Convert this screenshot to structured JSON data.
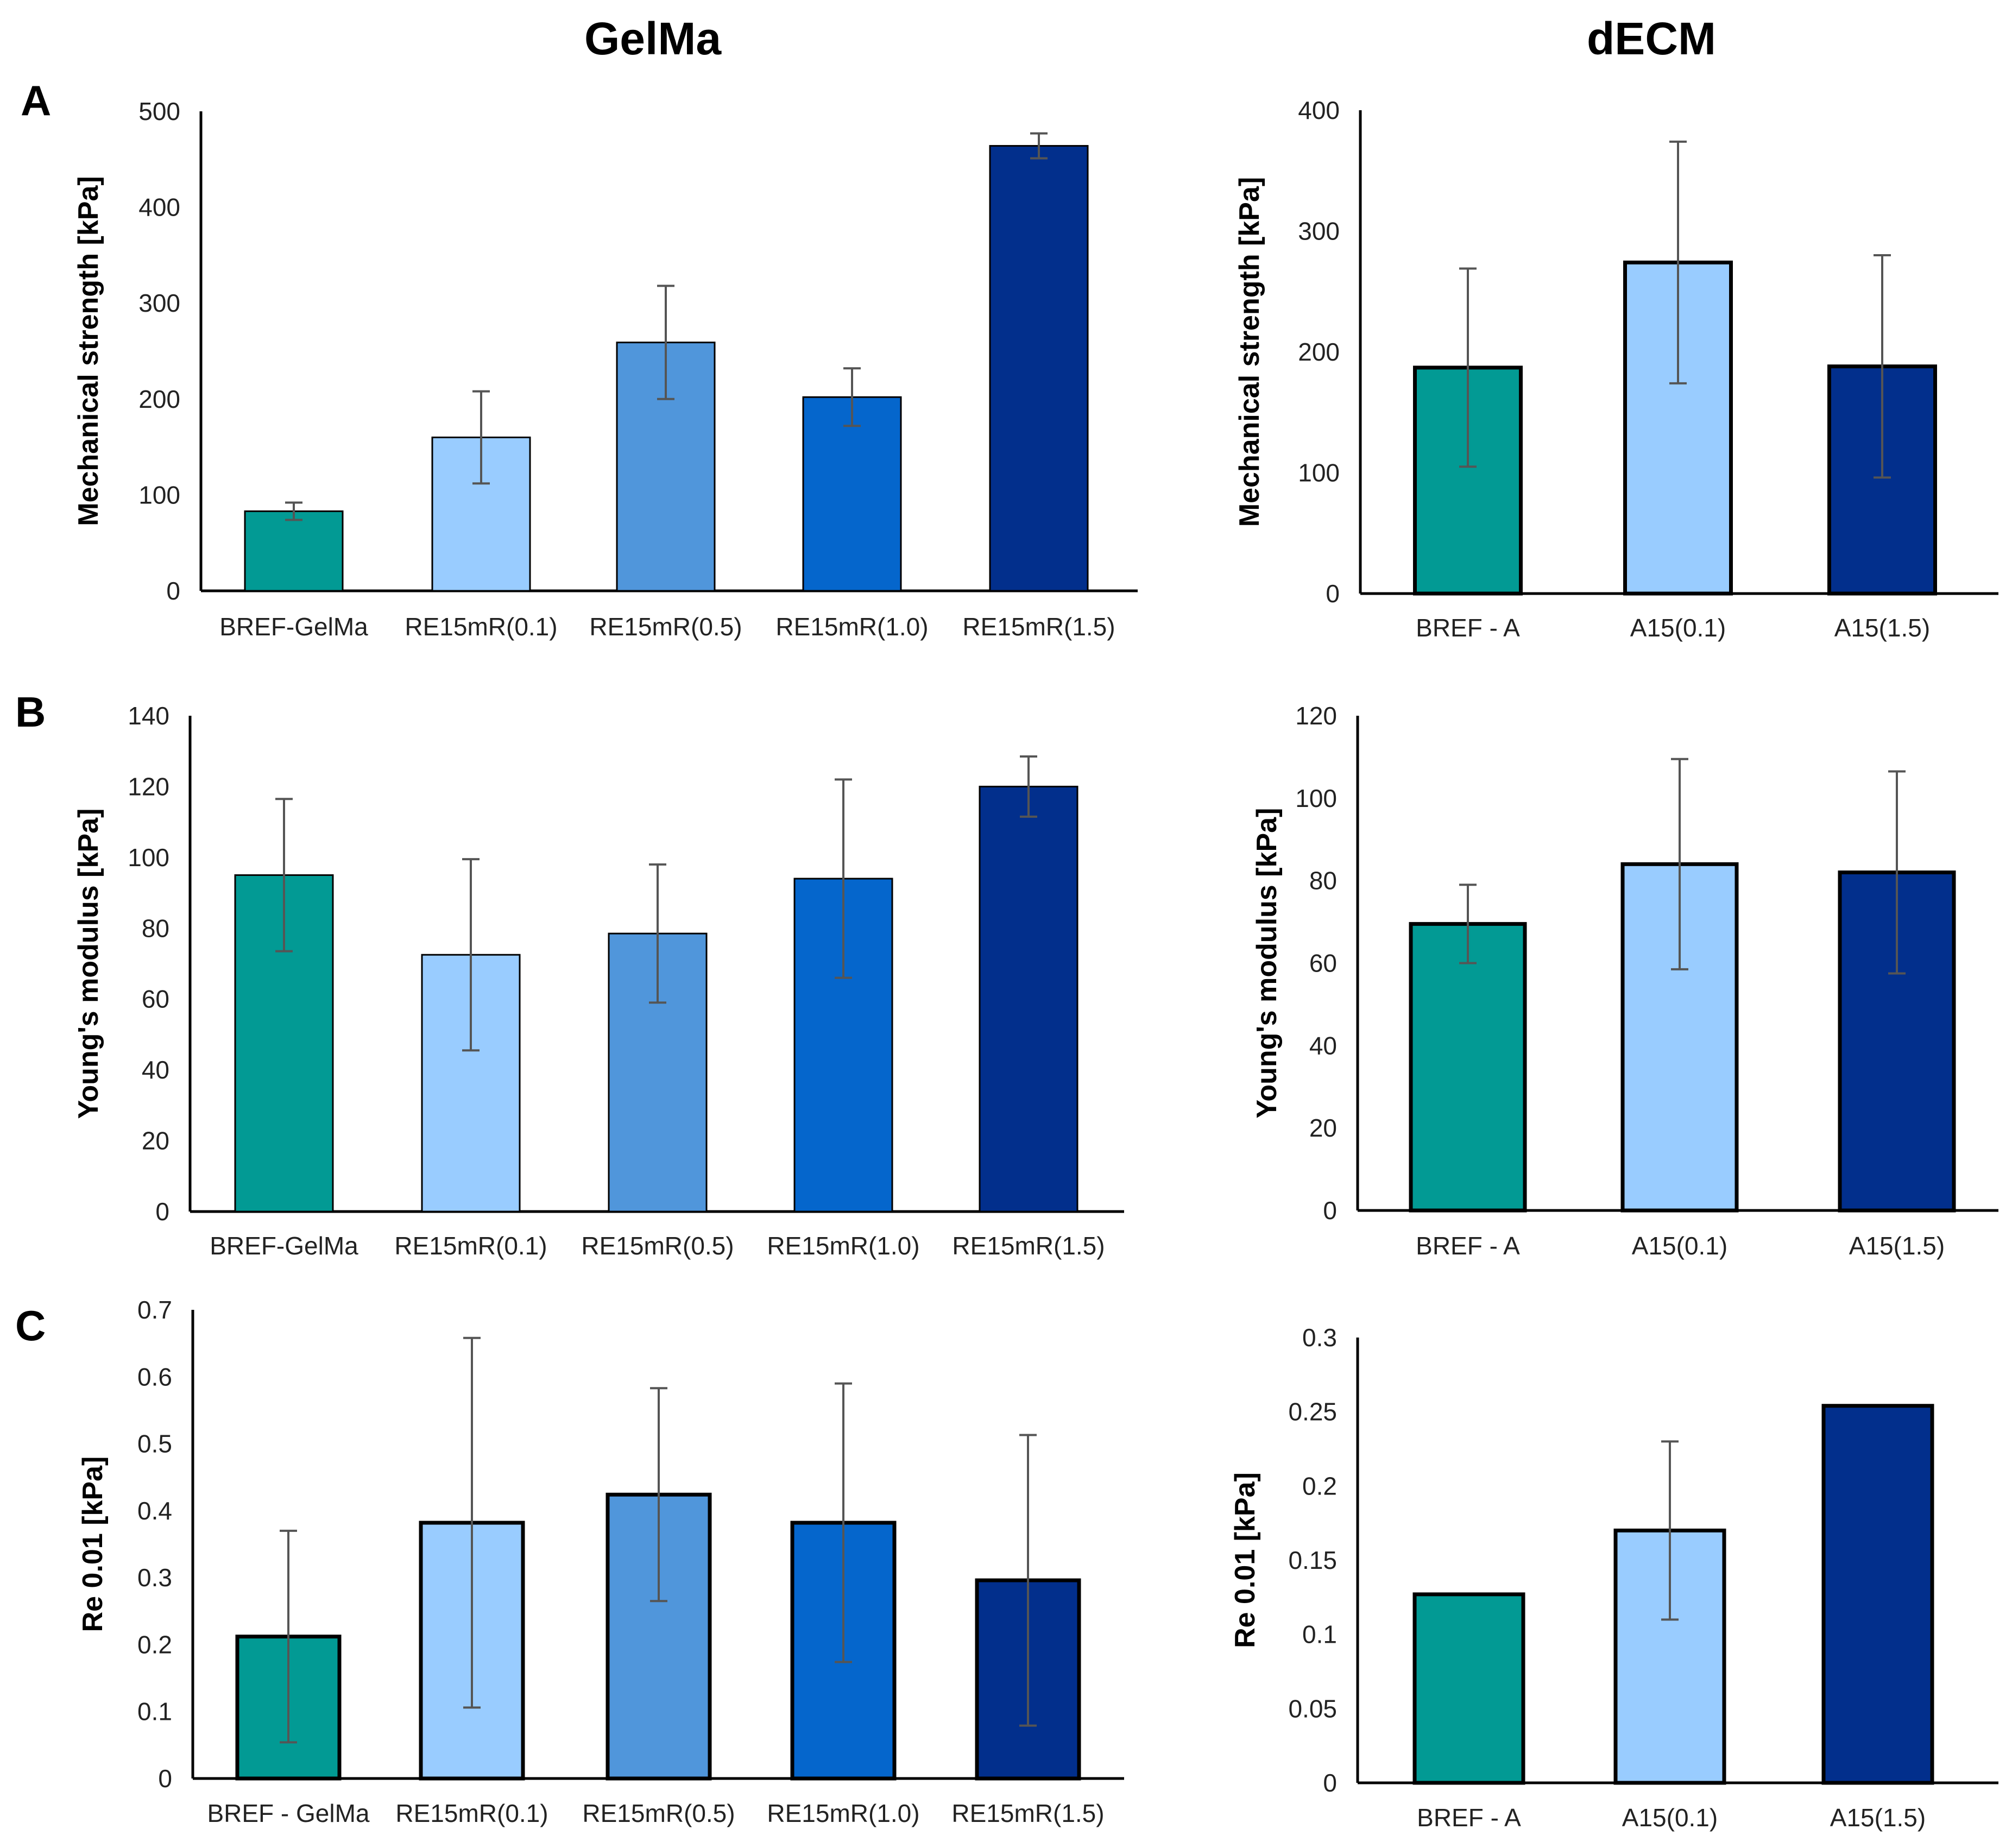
{
  "column_titles": {
    "left": "GelMa",
    "right": "dECM"
  },
  "panel_letters": {
    "a": "A",
    "b": "B",
    "c": "C"
  },
  "colors": [
    "#029a94",
    "#99ccff",
    "#5096db",
    "#0566cc",
    "#022f8c"
  ],
  "chart_data": [
    {
      "id": "A-GelMa",
      "type": "bar",
      "panel": "A",
      "column": "GelMa",
      "ylabel": "Mechanical strength [kPa]",
      "ylim": [
        0,
        500
      ],
      "yticks": [
        "0",
        "100",
        "200",
        "300",
        "400",
        "500"
      ],
      "categories": [
        "BREF-GelMa",
        "RE15mR(0.1)",
        "RE15mR(0.5)",
        "RE15mR(1.0)",
        "RE15mR(1.5)"
      ],
      "values": [
        83,
        160,
        259,
        202,
        464
      ],
      "errors": [
        9,
        48,
        59,
        30,
        13
      ]
    },
    {
      "id": "A-dECM",
      "type": "bar",
      "panel": "A",
      "column": "dECM",
      "ylabel": "Mechanical strength [kPa]",
      "ylim": [
        0,
        400
      ],
      "yticks": [
        "0",
        "100",
        "200",
        "300",
        "400"
      ],
      "categories": [
        "BREF - A",
        "A15(0.1)",
        "A15(1.5)"
      ],
      "values": [
        187,
        274,
        188
      ],
      "errors": [
        82,
        100,
        92
      ]
    },
    {
      "id": "B-GelMa",
      "type": "bar",
      "panel": "B",
      "column": "GelMa",
      "ylabel": "Young's modulus [kPa]",
      "ylim": [
        0,
        140
      ],
      "yticks": [
        "0",
        "20",
        "40",
        "60",
        "80",
        "100",
        "120",
        "140"
      ],
      "categories": [
        "BREF-GelMa",
        "RE15mR(0.1)",
        "RE15mR(0.5)",
        "RE15mR(1.0)",
        "RE15mR(1.5)"
      ],
      "values": [
        95,
        72.5,
        78.5,
        94,
        120
      ],
      "errors": [
        21.5,
        27,
        19.5,
        28,
        8.5
      ]
    },
    {
      "id": "B-dECM",
      "type": "bar",
      "panel": "B",
      "column": "dECM",
      "ylabel": "Young's modulus [kPa]",
      "ylim": [
        0,
        120
      ],
      "yticks": [
        "0",
        "20",
        "40",
        "60",
        "80",
        "100",
        "120"
      ],
      "categories": [
        "BREF - A",
        "A15(0.1)",
        "A15(1.5)"
      ],
      "values": [
        69.5,
        84,
        82
      ],
      "errors": [
        9.5,
        25.5,
        24.5
      ]
    },
    {
      "id": "C-GelMa",
      "type": "bar",
      "panel": "C",
      "column": "GelMa",
      "ylabel": "Re 0.01 [kPa]",
      "ylim": [
        0,
        0.7
      ],
      "yticks": [
        "0",
        "0.1",
        "0.2",
        "0.3",
        "0.4",
        "0.5",
        "0.6",
        "0.7"
      ],
      "categories": [
        "BREF - GelMa",
        "RE15mR(0.1)",
        "RE15mR(0.5)",
        "RE15mR(1.0)",
        "RE15mR(1.5)"
      ],
      "values": [
        0.212,
        0.382,
        0.424,
        0.382,
        0.296
      ],
      "errors": [
        0.158,
        0.276,
        0.159,
        0.208,
        0.217
      ]
    },
    {
      "id": "C-dECM",
      "type": "bar",
      "panel": "C",
      "column": "dECM",
      "ylabel": "Re 0.01 [kPa]",
      "ylim": [
        0,
        0.3
      ],
      "yticks": [
        "0",
        "0.05",
        "0.1",
        "0.15",
        "0.2",
        "0.25",
        "0.3"
      ],
      "categories": [
        "BREF - A",
        "A15(0.1)",
        "A15(1.5)"
      ],
      "values": [
        0.127,
        0.17,
        0.254
      ],
      "errors": [
        0,
        0.06,
        0
      ]
    }
  ]
}
